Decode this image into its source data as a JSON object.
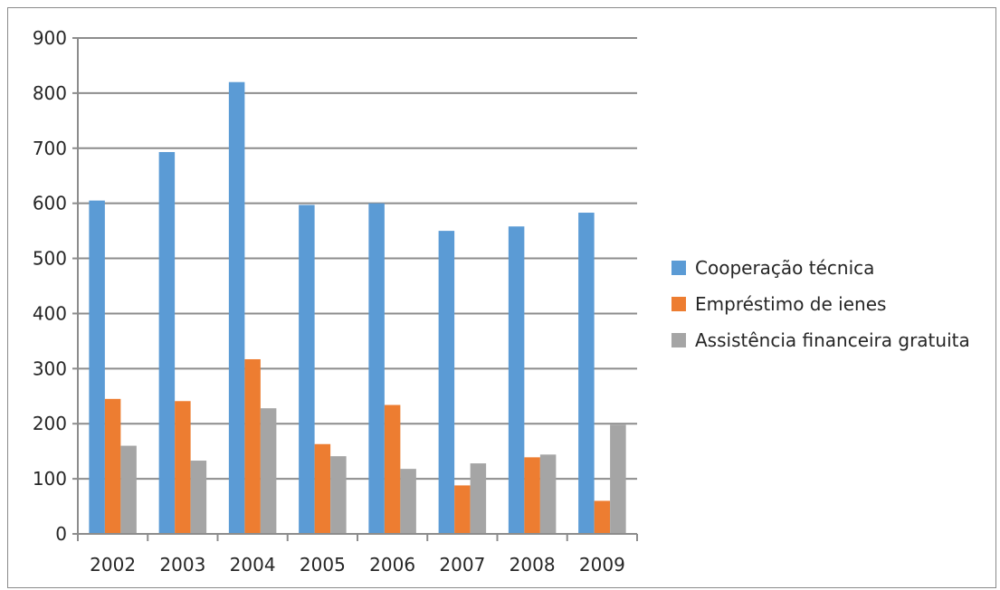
{
  "chart_data": {
    "type": "bar",
    "title": "",
    "xlabel": "",
    "ylabel": "",
    "categories": [
      "2002",
      "2003",
      "2004",
      "2005",
      "2006",
      "2007",
      "2008",
      "2009"
    ],
    "series": [
      {
        "name": "Cooperação técnica",
        "color": "#5b9bd5",
        "values": [
          605,
          693,
          820,
          597,
          600,
          550,
          558,
          583
        ]
      },
      {
        "name": "Empréstimo de ienes",
        "color": "#ed7d31",
        "values": [
          245,
          241,
          317,
          163,
          234,
          88,
          139,
          60
        ]
      },
      {
        "name": "Assistência financeira gratuita",
        "color": "#a5a5a5",
        "values": [
          160,
          133,
          228,
          141,
          118,
          128,
          144,
          198
        ]
      }
    ],
    "ylim": [
      0,
      900
    ],
    "yticks": [
      "0",
      "100",
      "200",
      "300",
      "400",
      "500",
      "600",
      "700",
      "800",
      "900"
    ],
    "grid": true,
    "legend_position": "right"
  }
}
